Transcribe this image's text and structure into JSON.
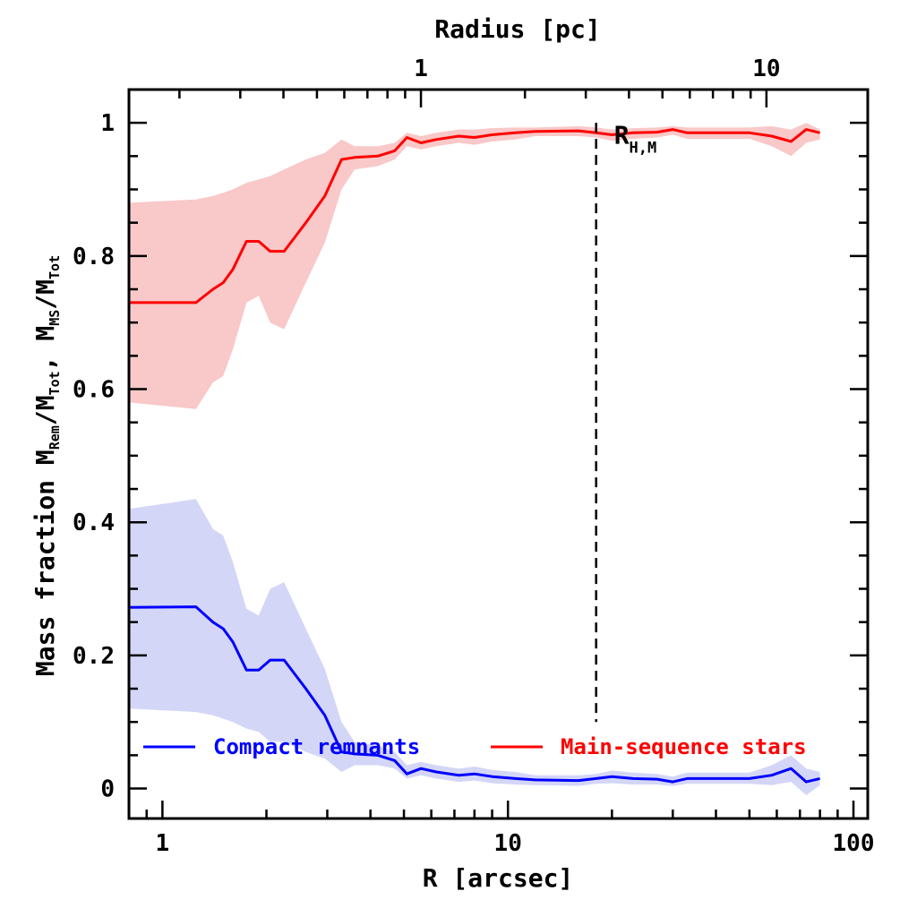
{
  "chart_data": {
    "type": "line",
    "xscale": "log",
    "xlabel": "R [arcsec]",
    "x2label": "Radius [pc]",
    "ylabel": "Mass fraction",
    "ylabel_formula_parts": [
      "M",
      "Rem",
      "/M",
      "Tot",
      ", M",
      "MS",
      "/M",
      "Tot"
    ],
    "xlim": [
      0.8,
      110
    ],
    "ylim": [
      -0.045,
      1.05
    ],
    "xticks": [
      1,
      10,
      100
    ],
    "xtick_labels": [
      "1",
      "10",
      "100"
    ],
    "x2_ticks_arcsec": [
      5.6,
      56
    ],
    "x2tick_labels": [
      "1",
      "10"
    ],
    "yticks": [
      0,
      0.2,
      0.4,
      0.6,
      0.8,
      1
    ],
    "ytick_labels": [
      "0",
      "0.2",
      "0.4",
      "0.6",
      "0.8",
      "1"
    ],
    "vline": {
      "x": 18,
      "y_range": [
        0.1,
        1.0
      ],
      "label_main": "R",
      "label_sub": "H,M",
      "style": "dashed"
    },
    "series": [
      {
        "name": "Main-sequence stars",
        "color": "#ff0000",
        "band_color": "#f9c8c8",
        "x": [
          0.8,
          1.25,
          1.4,
          1.5,
          1.6,
          1.75,
          1.9,
          2.05,
          2.25,
          2.6,
          2.95,
          3.3,
          3.6,
          4.2,
          4.7,
          5.1,
          5.6,
          6.2,
          7.2,
          8.0,
          9.0,
          10.5,
          12.0,
          16.0,
          18.0,
          20.0,
          23.0,
          27.0,
          30.0,
          33.0,
          40.0,
          50.0,
          58.0,
          66.0,
          73.0,
          80.0
        ],
        "values": [
          0.73,
          0.73,
          0.75,
          0.76,
          0.78,
          0.822,
          0.822,
          0.807,
          0.807,
          0.85,
          0.89,
          0.945,
          0.948,
          0.95,
          0.958,
          0.978,
          0.97,
          0.975,
          0.98,
          0.978,
          0.982,
          0.985,
          0.987,
          0.988,
          0.985,
          0.982,
          0.985,
          0.986,
          0.99,
          0.985,
          0.985,
          0.985,
          0.98,
          0.972,
          0.99,
          0.985
        ],
        "upper": [
          0.88,
          0.885,
          0.89,
          0.895,
          0.9,
          0.91,
          0.915,
          0.92,
          0.93,
          0.945,
          0.955,
          0.975,
          0.965,
          0.965,
          0.97,
          0.985,
          0.98,
          0.985,
          0.99,
          0.99,
          0.992,
          0.993,
          0.993,
          0.995,
          0.993,
          0.99,
          0.992,
          0.993,
          0.995,
          0.993,
          0.993,
          0.993,
          0.995,
          0.99,
          1.0,
          0.99
        ],
        "lower": [
          0.58,
          0.57,
          0.61,
          0.62,
          0.66,
          0.73,
          0.74,
          0.7,
          0.69,
          0.76,
          0.82,
          0.9,
          0.93,
          0.935,
          0.945,
          0.965,
          0.96,
          0.965,
          0.97,
          0.967,
          0.972,
          0.975,
          0.98,
          0.98,
          0.978,
          0.973,
          0.976,
          0.978,
          0.982,
          0.976,
          0.976,
          0.976,
          0.965,
          0.95,
          0.97,
          0.975
        ]
      },
      {
        "name": "Compact remnants",
        "color": "#0000ff",
        "band_color": "#d4d6f7",
        "x": [
          0.8,
          1.25,
          1.4,
          1.5,
          1.6,
          1.75,
          1.9,
          2.05,
          2.25,
          2.6,
          2.95,
          3.3,
          3.6,
          4.2,
          4.7,
          5.1,
          5.6,
          6.2,
          7.2,
          8.0,
          9.0,
          10.5,
          12.0,
          16.0,
          18.0,
          20.0,
          23.0,
          27.0,
          30.0,
          33.0,
          40.0,
          50.0,
          58.0,
          66.0,
          73.0,
          80.0
        ],
        "values": [
          0.272,
          0.273,
          0.25,
          0.24,
          0.22,
          0.178,
          0.178,
          0.193,
          0.193,
          0.15,
          0.11,
          0.055,
          0.052,
          0.05,
          0.042,
          0.022,
          0.03,
          0.025,
          0.02,
          0.022,
          0.018,
          0.015,
          0.013,
          0.012,
          0.015,
          0.018,
          0.015,
          0.014,
          0.01,
          0.015,
          0.015,
          0.015,
          0.02,
          0.03,
          0.01,
          0.015
        ],
        "upper": [
          0.42,
          0.435,
          0.39,
          0.38,
          0.34,
          0.27,
          0.26,
          0.3,
          0.31,
          0.24,
          0.18,
          0.1,
          0.07,
          0.065,
          0.055,
          0.035,
          0.04,
          0.035,
          0.03,
          0.033,
          0.028,
          0.025,
          0.02,
          0.02,
          0.022,
          0.027,
          0.024,
          0.022,
          0.018,
          0.024,
          0.024,
          0.024,
          0.035,
          0.05,
          0.03,
          0.025
        ],
        "lower": [
          0.12,
          0.115,
          0.11,
          0.105,
          0.1,
          0.09,
          0.085,
          0.07,
          0.07,
          0.055,
          0.045,
          0.025,
          0.035,
          0.035,
          0.03,
          0.015,
          0.02,
          0.015,
          0.01,
          0.012,
          0.008,
          0.006,
          0.005,
          0.004,
          0.007,
          0.008,
          0.006,
          0.006,
          0.004,
          0.007,
          0.007,
          0.007,
          0.005,
          0.01,
          -0.01,
          0.005
        ]
      }
    ],
    "legend": [
      {
        "label": "Compact remnants",
        "color": "#0000ff"
      },
      {
        "label": "Main-sequence stars",
        "color": "#ff0000"
      }
    ]
  }
}
